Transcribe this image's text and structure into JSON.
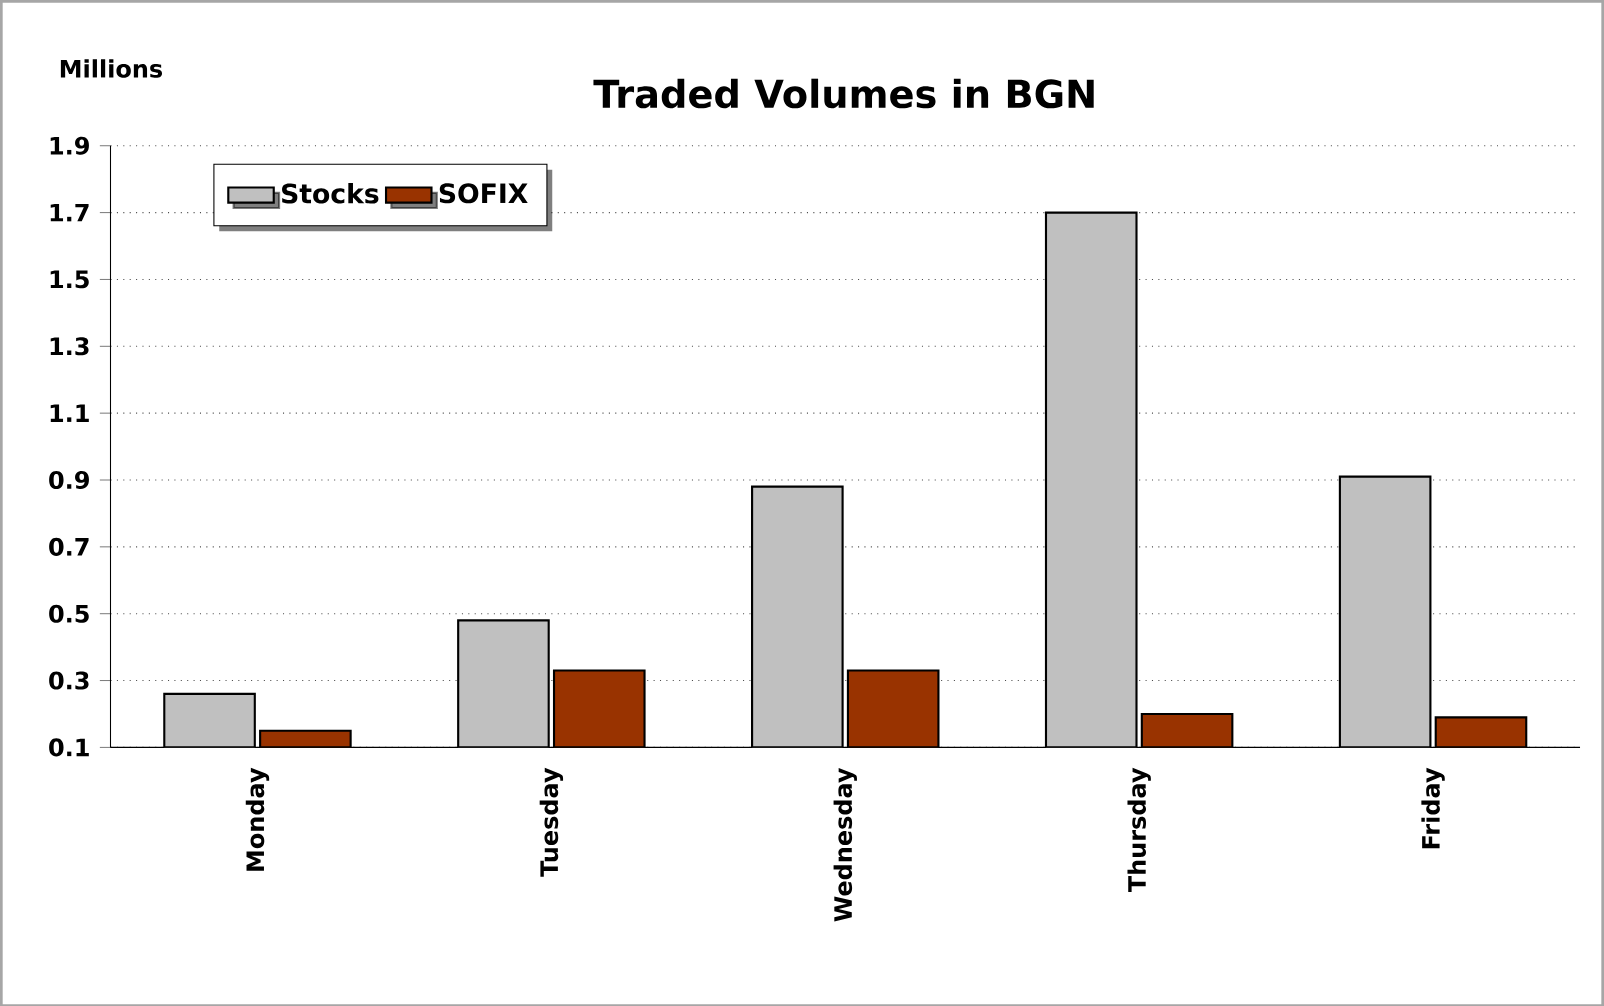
{
  "chart_data": {
    "type": "bar",
    "title": "Traded Volumes in BGN",
    "ylabel": "Millions",
    "categories": [
      "Monday",
      "Tuesday",
      "Wednesday",
      "Thursday",
      "Friday"
    ],
    "series": [
      {
        "name": "Stocks",
        "color": "#c0c0c0",
        "values": [
          0.26,
          0.48,
          0.88,
          1.7,
          0.91
        ]
      },
      {
        "name": "SOFIX",
        "color": "#993300",
        "values": [
          0.15,
          0.33,
          0.33,
          0.2,
          0.19
        ]
      }
    ],
    "ylim": [
      0.1,
      1.9
    ],
    "yticks": [
      0.1,
      0.3,
      0.5,
      0.7,
      0.9,
      1.1,
      1.3,
      1.5,
      1.7,
      1.9
    ],
    "grid": "y",
    "legend": "top left"
  }
}
